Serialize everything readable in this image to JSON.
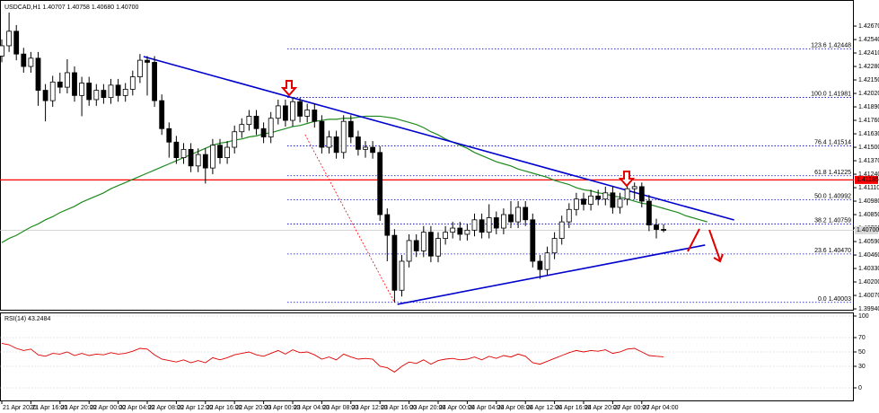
{
  "chart_data": {
    "type": "candlestick",
    "title": "USDCAD,H1  1.40707 1.40758 1.40680 1.40700",
    "up_color": "#ffffff",
    "down_color": "#000000",
    "outline_color": "#000000",
    "categories": [
      "21 Apr 2020",
      null,
      null,
      null,
      "21 Apr 16:00",
      null,
      null,
      null,
      "21 Apr 20:00",
      null,
      null,
      null,
      "22 Apr 00:00",
      null,
      null,
      null,
      "22 Apr 04:00",
      null,
      null,
      null,
      "22 Apr 08:00",
      null,
      null,
      null,
      "22 Apr 12:00",
      null,
      null,
      null,
      "22 Apr 16:00",
      null,
      null,
      null,
      "22 Apr 20:00",
      null,
      null,
      null,
      "23 Apr 00:00",
      null,
      null,
      null,
      "23 Apr 04:00",
      null,
      null,
      null,
      "23 Apr 08:00",
      null,
      null,
      null,
      "23 Apr 12:00",
      null,
      null,
      null,
      "23 Apr 16:00",
      null,
      null,
      null,
      "23 Apr 20:00",
      null,
      null,
      null,
      "24 Apr 00:00",
      null,
      null,
      null,
      "24 Apr 04:00",
      null,
      null,
      null,
      "24 Apr 08:00",
      null,
      null,
      null,
      "24 Apr 12:00",
      null,
      null,
      null,
      "24 Apr 16:00",
      null,
      null,
      null,
      "24 Apr 20:00",
      null,
      null,
      null,
      "27 Apr 00:00",
      null,
      null,
      null,
      "27 Apr 04:00",
      null,
      null,
      null,
      null,
      null,
      null,
      null,
      null,
      null,
      null,
      null,
      null,
      null
    ],
    "open": [
      1.4238,
      1.4248,
      1.4262,
      1.424,
      1.4228,
      1.4236,
      1.4205,
      1.4195,
      1.4213,
      1.4208,
      1.4222,
      1.42,
      1.4212,
      1.4196,
      1.4205,
      1.4198,
      1.421,
      1.42,
      1.4206,
      1.4218,
      1.4234,
      1.4232,
      1.4195,
      1.4168,
      1.4155,
      1.414,
      1.4148,
      1.4132,
      1.4143,
      1.413,
      1.4152,
      1.414,
      1.415,
      1.4165,
      1.4172,
      1.418,
      1.4168,
      1.416,
      1.4178,
      1.419,
      1.4176,
      1.4194,
      1.418,
      1.4186,
      1.4175,
      1.415,
      1.416,
      1.4145,
      1.4175,
      1.416,
      1.4148,
      1.415,
      1.4145,
      1.4085,
      1.4065,
      1.4012,
      1.404,
      1.406,
      1.405,
      1.4068,
      1.4045,
      1.4062,
      1.4068,
      1.4072,
      1.4066,
      1.407,
      1.408,
      1.4068,
      1.4082,
      1.4072,
      1.4085,
      1.4078,
      1.4092,
      1.408,
      1.404,
      1.4032,
      1.4048,
      1.4062,
      1.4078,
      1.409,
      1.41,
      1.4095,
      1.4103,
      1.41,
      1.4106,
      1.4092,
      1.41,
      1.411,
      1.4112,
      1.4098,
      1.4075,
      1.40707,
      null,
      null,
      null,
      null,
      null,
      null,
      null,
      null,
      null,
      null
    ],
    "high": [
      1.4254,
      1.428,
      1.4268,
      1.4246,
      1.4242,
      1.4242,
      1.4211,
      1.4219,
      1.4222,
      1.4235,
      1.4228,
      1.4218,
      1.4218,
      1.4211,
      1.4211,
      1.4216,
      1.4216,
      1.4212,
      1.4224,
      1.424,
      1.4238,
      1.4238,
      1.4201,
      1.4174,
      1.4161,
      1.4154,
      1.4154,
      1.4149,
      1.4149,
      1.4158,
      1.4158,
      1.4156,
      1.4171,
      1.4178,
      1.4186,
      1.4186,
      1.4174,
      1.4184,
      1.4196,
      1.4196,
      1.4198,
      1.4198,
      1.4192,
      1.4192,
      1.4181,
      1.4166,
      1.4166,
      1.4181,
      1.4181,
      1.4166,
      1.4156,
      1.4156,
      1.4151,
      1.4091,
      1.4071,
      1.4046,
      1.4066,
      1.4066,
      1.4074,
      1.4074,
      1.4068,
      1.4074,
      1.4078,
      1.4078,
      1.4076,
      1.4086,
      1.4086,
      1.4095,
      1.4088,
      1.4091,
      1.4098,
      1.4098,
      1.4098,
      1.4086,
      1.4046,
      1.4054,
      1.4068,
      1.4084,
      1.4096,
      1.4106,
      1.4106,
      1.4109,
      1.4109,
      1.4112,
      1.4112,
      1.4106,
      1.4118,
      1.4116,
      1.4116,
      1.4104,
      1.4081,
      1.40758,
      null,
      null,
      null,
      null,
      null,
      null,
      null,
      null,
      null,
      null
    ],
    "low": [
      1.4232,
      1.4242,
      1.4234,
      1.4222,
      1.4222,
      1.419,
      1.4175,
      1.4189,
      1.4202,
      1.4202,
      1.4194,
      1.418,
      1.419,
      1.419,
      1.4192,
      1.4192,
      1.4194,
      1.4194,
      1.42,
      1.4212,
      1.42,
      1.4189,
      1.4162,
      1.414,
      1.4134,
      1.4134,
      1.4126,
      1.4126,
      1.4115,
      1.4124,
      1.4134,
      1.4134,
      1.4144,
      1.4159,
      1.4166,
      1.4162,
      1.4154,
      1.4154,
      1.4172,
      1.417,
      1.417,
      1.4174,
      1.4174,
      1.4169,
      1.4144,
      1.4144,
      1.4139,
      1.4139,
      1.4154,
      1.4142,
      1.414,
      1.4139,
      1.4079,
      1.404,
      1.40003,
      1.4006,
      1.4034,
      1.4044,
      1.4044,
      1.4039,
      1.4039,
      1.4056,
      1.4062,
      1.406,
      1.406,
      1.4064,
      1.4062,
      1.4062,
      1.4066,
      1.4066,
      1.4072,
      1.4072,
      1.4074,
      1.4034,
      1.4023,
      1.4026,
      1.4042,
      1.4056,
      1.4072,
      1.4084,
      1.4089,
      1.4089,
      1.4094,
      1.4094,
      1.4086,
      1.4086,
      1.4094,
      1.41,
      1.4092,
      1.4069,
      1.4062,
      1.4068,
      null,
      null,
      null,
      null,
      null,
      null,
      null,
      null,
      null,
      null
    ],
    "close": [
      1.4248,
      1.4262,
      1.424,
      1.4228,
      1.4236,
      1.4205,
      1.4195,
      1.4213,
      1.4208,
      1.4222,
      1.42,
      1.4212,
      1.4196,
      1.4205,
      1.4198,
      1.421,
      1.42,
      1.4206,
      1.4218,
      1.4234,
      1.4232,
      1.4195,
      1.4168,
      1.4155,
      1.414,
      1.4148,
      1.4132,
      1.4143,
      1.413,
      1.4152,
      1.414,
      1.415,
      1.4165,
      1.4172,
      1.418,
      1.4168,
      1.416,
      1.4178,
      1.419,
      1.4176,
      1.4194,
      1.418,
      1.4186,
      1.4175,
      1.415,
      1.416,
      1.4145,
      1.4175,
      1.416,
      1.4148,
      1.415,
      1.4145,
      1.4085,
      1.4065,
      1.4012,
      1.404,
      1.406,
      1.405,
      1.4068,
      1.4045,
      1.4062,
      1.4068,
      1.4072,
      1.4066,
      1.407,
      1.408,
      1.4068,
      1.4082,
      1.4072,
      1.4085,
      1.4078,
      1.4092,
      1.408,
      1.404,
      1.4032,
      1.4048,
      1.4062,
      1.4078,
      1.409,
      1.41,
      1.4095,
      1.4103,
      1.41,
      1.4106,
      1.4092,
      1.41,
      1.411,
      1.4112,
      1.4098,
      1.4075,
      1.40707,
      1.407,
      null,
      null,
      null,
      null,
      null,
      null,
      null,
      null,
      null,
      null
    ],
    "ma": {
      "color": "#1f8a1f",
      "values": [
        1.4058,
        1.4062,
        1.4065,
        1.4069,
        1.4073,
        1.4076,
        1.408,
        1.4083,
        1.4087,
        1.409,
        1.4093,
        1.4097,
        1.41,
        1.4103,
        1.4106,
        1.411,
        1.4113,
        1.4116,
        1.4119,
        1.4122,
        1.4125,
        1.4128,
        1.4131,
        1.4134,
        1.4137,
        1.414,
        1.4143,
        1.4146,
        1.4149,
        1.4152,
        1.4154,
        1.4155,
        1.4157,
        1.4158,
        1.416,
        1.4161,
        1.4163,
        1.4164,
        1.4166,
        1.4168,
        1.417,
        1.4171,
        1.4173,
        1.4175,
        1.4176,
        1.4177,
        1.4177,
        1.4178,
        1.4178,
        1.4179,
        1.418,
        1.418,
        1.418,
        1.4179,
        1.4178,
        1.4176,
        1.4174,
        1.4172,
        1.4169,
        1.4165,
        1.4162,
        1.4158,
        1.4155,
        1.4152,
        1.4149,
        1.4145,
        1.4142,
        1.4139,
        1.4136,
        1.4134,
        1.4132,
        1.4129,
        1.4127,
        1.4125,
        1.4123,
        1.4121,
        1.4118,
        1.4116,
        1.4114,
        1.4111,
        1.4109,
        1.4108,
        1.4106,
        1.4105,
        1.4103,
        1.4102,
        1.41,
        1.4098,
        1.4096,
        1.4095,
        1.4093,
        1.4091,
        1.4089,
        1.4087,
        1.4084,
        1.4082,
        1.408,
        1.4078,
        null,
        null,
        null,
        null
      ]
    },
    "trendlines": [
      {
        "color": "#0000cc",
        "x": [
          19.5,
          100.7
        ],
        "y": [
          1.42376,
          1.40798
        ]
      },
      {
        "color": "#0000cc",
        "x": [
          54.4,
          96.7
        ],
        "y": [
          1.39984,
          1.40556
        ]
      }
    ],
    "dashed_line": {
      "color": "#ff0000",
      "x": [
        41.7,
        54
      ],
      "y": [
        1.41622,
        1.40003
      ]
    },
    "fib": [
      {
        "level": {
          "value": 0,
          "label": "0.0"
        },
        "price": 1.40003
      },
      {
        "level": 23.6,
        "price": {
          "value": 1.4047,
          "label": "1.40470"
        }
      },
      {
        "level": 38.2,
        "price": 1.40759
      },
      {
        "level": {
          "value": 50,
          "label": "50.0"
        },
        "price": 1.40992
      },
      {
        "level": 61.8,
        "price": 1.41225
      },
      {
        "level": 76.4,
        "price": 1.41514
      },
      {
        "level": {
          "value": 100,
          "label": "100.0"
        },
        "price": 1.41981
      },
      {
        "level": 123.6,
        "price": 1.42448
      }
    ],
    "fib_color": "#0000cc",
    "hline": {
      "value": 1.41185,
      "label": "1.41185",
      "color": "#ff0000"
    },
    "last_price": {
      "value": 1.407,
      "label": "1.40700"
    },
    "ylim": [
      1.39923,
      1.42887
    ],
    "yticks": [
      {
        "value": 1.3994,
        "label": "1.39940"
      },
      {
        "value": 1.4007,
        "label": "1.40070"
      },
      {
        "value": 1.402,
        "label": "1.40200"
      },
      {
        "value": 1.4033,
        "label": "1.40330"
      },
      {
        "value": 1.4046,
        "label": "1.40460"
      },
      {
        "value": 1.4059,
        "label": "1.40590"
      },
      {
        "value": 1.4072,
        "label": "1.40720"
      },
      {
        "value": 1.4085,
        "label": "1.40850"
      },
      {
        "value": 1.4098,
        "label": "1.40980"
      },
      {
        "value": 1.4111,
        "label": "1.41110"
      },
      {
        "value": 1.4124,
        "label": "1.41240"
      },
      {
        "value": 1.4137,
        "label": "1.41370"
      },
      {
        "value": 1.415,
        "label": "1.41500"
      },
      {
        "value": 1.4163,
        "label": "1.41630"
      },
      {
        "value": 1.4176,
        "label": "1.41760"
      },
      {
        "value": 1.4189,
        "label": "1.41890"
      },
      {
        "value": 1.4202,
        "label": "1.42020"
      },
      {
        "value": 1.4215,
        "label": "1.42150"
      },
      {
        "value": 1.4228,
        "label": "1.42280"
      },
      {
        "value": 1.4241,
        "label": "1.42410"
      },
      {
        "value": 1.4254,
        "label": "1.42540"
      },
      {
        "value": 1.4267,
        "label": "1.42670"
      }
    ],
    "grid": false,
    "rsi": {
      "title": "RSI(14) 43.2484",
      "color": "#e00000",
      "values": [
        62,
        60,
        55,
        52,
        54,
        46,
        44,
        48,
        47,
        50,
        45,
        48,
        45,
        47,
        46,
        49,
        47,
        48,
        51,
        55,
        54,
        46,
        40,
        38,
        36,
        39,
        35,
        38,
        35,
        42,
        39,
        42,
        46,
        48,
        50,
        46,
        44,
        48,
        52,
        47,
        53,
        49,
        50,
        46,
        40,
        43,
        39,
        47,
        43,
        40,
        41,
        40,
        30,
        28,
        22,
        30,
        36,
        34,
        39,
        33,
        38,
        40,
        41,
        39,
        40,
        43,
        39,
        44,
        41,
        45,
        43,
        47,
        44,
        35,
        33,
        37,
        41,
        45,
        49,
        52,
        50,
        52,
        51,
        53,
        48,
        50,
        54,
        55,
        50,
        45,
        44,
        43.2484
      ],
      "ylim": [
        0,
        100
      ],
      "yticks": [
        100,
        70,
        50,
        30,
        0
      ],
      "grid": true
    }
  }
}
